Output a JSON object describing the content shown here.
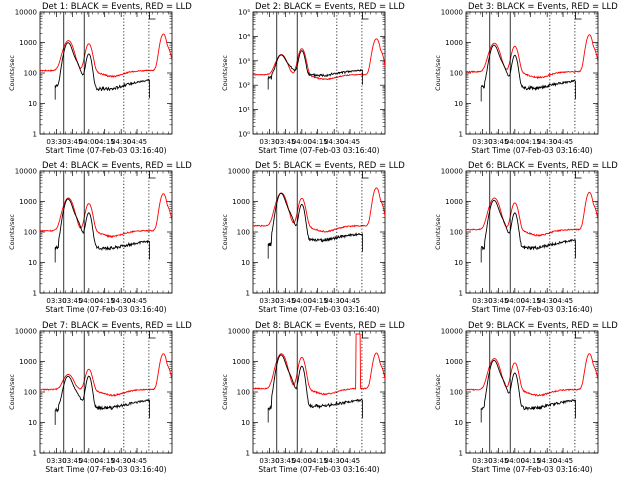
{
  "chart_data": [
    {
      "type": "line",
      "title": "Det 1: BLACK = Events, RED = LLD",
      "ylabel": "Counts/sec",
      "xlabel": "Start Time (07-Feb-03 03:16:40)",
      "yscale": "log",
      "ylim": [
        1,
        10000
      ],
      "xticks": [
        "03:30",
        "03:45",
        "04:00",
        "04:15",
        "04:30",
        "04:45"
      ],
      "yticks": [
        "1",
        "10",
        "100",
        "1000",
        "10000"
      ],
      "lld": {
        "base": 120,
        "peak1": 1150,
        "peak2": 850,
        "late": 1900
      },
      "events": {
        "peak1": 900,
        "peak2": 420,
        "trough": 30,
        "end": 60,
        "start": 40
      },
      "series": [
        {
          "name": "BLACK",
          "color": "#000000"
        },
        {
          "name": "RED",
          "color": "#ff0000"
        }
      ]
    },
    {
      "type": "line",
      "title": "Det 2: BLACK = Events, RED = LLD",
      "ylabel": "Counts/sec",
      "xlabel": "Start Time (07-Feb-03 03:16:40)",
      "yscale": "log",
      "ylim": [
        1,
        100000
      ],
      "xticks": [
        "03:30",
        "03:45",
        "04:00",
        "04:15",
        "04:30",
        "04:45"
      ],
      "yticks": [
        "10⁰",
        "10¹",
        "10²",
        "10³",
        "10⁴",
        "10⁵"
      ],
      "lld": {
        "base": 270,
        "peak1": 1800,
        "peak2": 3000,
        "late": 8000
      },
      "events": {
        "peak1": 1600,
        "peak2": 2600,
        "trough": 260,
        "end": 420,
        "start": 200
      },
      "series": [
        {
          "name": "BLACK",
          "color": "#000000"
        },
        {
          "name": "RED",
          "color": "#ff0000"
        }
      ]
    },
    {
      "type": "line",
      "title": "Det 3: BLACK = Events, RED = LLD",
      "ylabel": "Counts/sec",
      "xlabel": "Start Time (07-Feb-03 03:16:40)",
      "yscale": "log",
      "ylim": [
        1,
        10000
      ],
      "xticks": [
        "03:30",
        "03:45",
        "04:00",
        "04:15",
        "04:30",
        "04:45"
      ],
      "yticks": [
        "1",
        "10",
        "100",
        "1000",
        "10000"
      ],
      "lld": {
        "base": 110,
        "peak1": 950,
        "peak2": 700,
        "late": 1800
      },
      "events": {
        "peak1": 750,
        "peak2": 380,
        "trough": 32,
        "end": 55,
        "start": 35
      },
      "series": [
        {
          "name": "BLACK",
          "color": "#000000"
        },
        {
          "name": "RED",
          "color": "#ff0000"
        }
      ]
    },
    {
      "type": "line",
      "title": "Det 4: BLACK = Events, RED = LLD",
      "ylabel": "Counts/sec",
      "xlabel": "Start Time (07-Feb-03 03:16:40)",
      "yscale": "log",
      "ylim": [
        1,
        10000
      ],
      "xticks": [
        "03:30",
        "03:45",
        "04:00",
        "04:15",
        "04:30",
        "04:45"
      ],
      "yticks": [
        "1",
        "10",
        "100",
        "1000",
        "10000"
      ],
      "lld": {
        "base": 110,
        "peak1": 1300,
        "peak2": 800,
        "late": 1800
      },
      "events": {
        "peak1": 1100,
        "peak2": 420,
        "trough": 30,
        "end": 50,
        "start": 30
      },
      "series": [
        {
          "name": "BLACK",
          "color": "#000000"
        },
        {
          "name": "RED",
          "color": "#ff0000"
        }
      ]
    },
    {
      "type": "line",
      "title": "Det 5: BLACK = Events, RED = LLD",
      "ylabel": "Counts/sec",
      "xlabel": "Start Time (07-Feb-03 03:16:40)",
      "yscale": "log",
      "ylim": [
        1,
        10000
      ],
      "xticks": [
        "03:30",
        "03:45",
        "04:00",
        "04:15",
        "04:30",
        "04:45"
      ],
      "yticks": [
        "1",
        "10",
        "100",
        "1000",
        "10000"
      ],
      "lld": {
        "base": 160,
        "peak1": 1900,
        "peak2": 1200,
        "late": 2800
      },
      "events": {
        "peak1": 1700,
        "peak2": 800,
        "trough": 55,
        "end": 90,
        "start": 40
      },
      "series": [
        {
          "name": "BLACK",
          "color": "#000000"
        },
        {
          "name": "RED",
          "color": "#ff0000"
        }
      ]
    },
    {
      "type": "line",
      "title": "Det 6: BLACK = Events, RED = LLD",
      "ylabel": "Counts/sec",
      "xlabel": "Start Time (07-Feb-03 03:16:40)",
      "yscale": "log",
      "ylim": [
        1,
        10000
      ],
      "xticks": [
        "03:30",
        "03:45",
        "04:00",
        "04:15",
        "04:30",
        "04:45"
      ],
      "yticks": [
        "1",
        "10",
        "100",
        "1000",
        "10000"
      ],
      "lld": {
        "base": 120,
        "peak1": 1300,
        "peak2": 850,
        "late": 2000
      },
      "events": {
        "peak1": 1000,
        "peak2": 420,
        "trough": 30,
        "end": 55,
        "start": 30
      },
      "series": [
        {
          "name": "BLACK",
          "color": "#000000"
        },
        {
          "name": "RED",
          "color": "#ff0000"
        }
      ]
    },
    {
      "type": "line",
      "title": "Det 7: BLACK = Events, RED = LLD",
      "ylabel": "Counts/sec",
      "xlabel": "Start Time (07-Feb-03 03:16:40)",
      "yscale": "log",
      "ylim": [
        1,
        10000
      ],
      "xticks": [
        "03:30",
        "03:45",
        "04:00",
        "04:15",
        "04:30",
        "04:45"
      ],
      "yticks": [
        "1",
        "10",
        "100",
        "1000",
        "10000"
      ],
      "lld": {
        "base": 120,
        "peak1": 380,
        "peak2": 500,
        "late": 1800
      },
      "events": {
        "peak1": 300,
        "peak2": 330,
        "trough": 30,
        "end": 55,
        "start": 25
      },
      "series": [
        {
          "name": "BLACK",
          "color": "#000000"
        },
        {
          "name": "RED",
          "color": "#ff0000"
        }
      ]
    },
    {
      "type": "line",
      "title": "Det 8: BLACK = Events, RED = LLD",
      "ylabel": "Counts/sec",
      "xlabel": "Start Time (07-Feb-03 03:16:40)",
      "yscale": "log",
      "ylim": [
        1,
        10000
      ],
      "xticks": [
        "03:30",
        "03:45",
        "04:00",
        "04:15",
        "04:30",
        "04:45"
      ],
      "yticks": [
        "1",
        "10",
        "100",
        "1000",
        "10000"
      ],
      "lld": {
        "base": 130,
        "peak1": 1800,
        "peak2": 1300,
        "late": 1900,
        "spike": 8000
      },
      "events": {
        "peak1": 1500,
        "peak2": 700,
        "trough": 35,
        "end": 55,
        "start": 30
      },
      "series": [
        {
          "name": "BLACK",
          "color": "#000000"
        },
        {
          "name": "RED",
          "color": "#ff0000"
        }
      ]
    },
    {
      "type": "line",
      "title": "Det 9: BLACK = Events, RED = LLD",
      "ylabel": "Counts/sec",
      "xlabel": "Start Time (07-Feb-03 03:16:40)",
      "yscale": "log",
      "ylim": [
        1,
        10000
      ],
      "xticks": [
        "03:30",
        "03:45",
        "04:00",
        "04:15",
        "04:30",
        "04:45"
      ],
      "yticks": [
        "1",
        "10",
        "100",
        "1000",
        "10000"
      ],
      "lld": {
        "base": 120,
        "peak1": 1250,
        "peak2": 850,
        "late": 1800
      },
      "events": {
        "peak1": 1000,
        "peak2": 420,
        "trough": 30,
        "end": 55,
        "start": 30
      },
      "series": [
        {
          "name": "BLACK",
          "color": "#000000"
        },
        {
          "name": "RED",
          "color": "#ff0000"
        }
      ]
    }
  ]
}
